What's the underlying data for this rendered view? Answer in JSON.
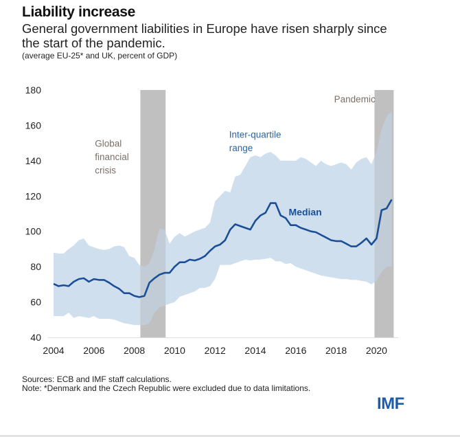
{
  "header": {
    "title": "Liability increase",
    "subtitle": "General government liabilities in Europe have risen sharply since the start of the pandemic.",
    "units": "(average EU-25* and UK, percent of GDP)"
  },
  "footer": {
    "sources": "Sources: ECB and IMF staff calculations.",
    "note": "Note: *Denmark and the Czech Republic were excluded due to data limitations.",
    "logo": "IMF"
  },
  "colors": {
    "median": "#1a4f98",
    "band": "#d0dfee",
    "shade": "#cfcfcf",
    "annotation": "#7a6e66",
    "annotation_blue": "#2a64a8",
    "axis": "#dddddd"
  },
  "chart_data": {
    "type": "area",
    "title": "Liability increase",
    "xlabel": "",
    "ylabel": "percent of GDP",
    "xlim": [
      2004,
      2020.75
    ],
    "ylim": [
      40,
      180
    ],
    "grid": false,
    "legend": "inline-annotations",
    "xticks": [
      "2004",
      "2006",
      "2008",
      "2010",
      "2012",
      "2014",
      "2016",
      "2018",
      "2020"
    ],
    "yticks": [
      "40",
      "60",
      "80",
      "100",
      "120",
      "140",
      "160",
      "180"
    ],
    "x": [
      2004.0,
      2004.25,
      2004.5,
      2004.75,
      2005.0,
      2005.25,
      2005.5,
      2005.75,
      2006.0,
      2006.25,
      2006.5,
      2006.75,
      2007.0,
      2007.25,
      2007.5,
      2007.75,
      2008.0,
      2008.25,
      2008.5,
      2008.75,
      2009.0,
      2009.25,
      2009.5,
      2009.75,
      2010.0,
      2010.25,
      2010.5,
      2010.75,
      2011.0,
      2011.25,
      2011.5,
      2011.75,
      2012.0,
      2012.25,
      2012.5,
      2012.75,
      2013.0,
      2013.25,
      2013.5,
      2013.75,
      2014.0,
      2014.25,
      2014.5,
      2014.75,
      2015.0,
      2015.25,
      2015.5,
      2015.75,
      2016.0,
      2016.25,
      2016.5,
      2016.75,
      2017.0,
      2017.25,
      2017.5,
      2017.75,
      2018.0,
      2018.25,
      2018.5,
      2018.75,
      2019.0,
      2019.25,
      2019.5,
      2019.75,
      2020.0,
      2020.25,
      2020.5,
      2020.75
    ],
    "series": [
      {
        "name": "Median",
        "values": [
          70.3,
          69,
          69.5,
          69,
          71.5,
          73,
          73.5,
          71.5,
          73,
          72.5,
          72.5,
          71,
          69,
          67.5,
          65,
          65,
          63.5,
          62.8,
          63.5,
          71,
          73.5,
          75.5,
          76.5,
          76.5,
          80,
          82.5,
          82.5,
          84,
          83.5,
          84.5,
          86,
          89,
          91.5,
          92.5,
          95,
          101,
          104,
          103,
          102,
          101,
          106,
          109,
          110.5,
          116,
          116,
          109,
          107.5,
          103.5,
          103.5,
          102,
          101,
          100,
          99.5,
          98,
          96.5,
          95,
          94.5,
          94.5,
          93,
          91.5,
          91.5,
          93.5,
          96,
          92.5,
          96,
          112,
          113,
          118
        ]
      },
      {
        "name": "Inter-quartile range (upper)",
        "values": [
          88,
          87.5,
          87.5,
          90,
          92,
          95,
          96,
          92,
          91,
          90,
          89.5,
          90,
          91.5,
          92,
          91,
          86,
          85,
          81,
          80,
          82,
          90,
          101.5,
          101,
          93,
          97,
          99,
          97,
          98.5,
          100,
          101,
          102,
          105,
          117,
          120,
          123,
          122,
          131,
          132,
          137,
          142,
          143,
          142,
          144,
          145,
          143,
          140,
          140,
          140,
          140,
          142,
          141,
          139,
          137,
          140,
          138,
          137,
          138,
          139,
          138,
          135,
          139,
          141,
          142,
          138,
          145,
          158,
          165,
          168
        ]
      },
      {
        "name": "Inter-quartile range (lower)",
        "values": [
          52,
          52,
          52,
          54,
          51,
          52,
          51.5,
          51,
          52,
          50.5,
          50.5,
          50.5,
          50,
          49,
          48,
          47.5,
          47,
          47,
          47,
          48,
          54,
          57,
          58,
          59,
          60,
          63,
          64,
          65,
          66,
          68,
          68,
          69,
          73,
          81,
          81,
          81,
          82,
          83,
          84,
          83.5,
          84,
          84,
          84.5,
          85,
          83,
          83,
          81.5,
          82,
          80,
          79,
          78,
          77,
          76,
          75,
          74.5,
          74,
          73.5,
          73,
          73,
          72.5,
          72.5,
          72,
          71.5,
          70,
          72,
          77,
          80,
          80
        ]
      }
    ],
    "shaded_periods": [
      {
        "label": "Global financial crisis",
        "start": 2008.3,
        "end": 2009.55
      },
      {
        "label": "Pandemic",
        "start": 2019.9,
        "end": 2020.85
      }
    ],
    "annotations": [
      {
        "text": [
          "Global",
          "financial",
          "crisis"
        ],
        "x": 2006.05,
        "y": 148
      },
      {
        "text": [
          "Inter-quartile",
          "range"
        ],
        "x": 2012.7,
        "y": 153
      },
      {
        "text": [
          "Median"
        ],
        "x": 2015.65,
        "y": 109
      },
      {
        "text": [
          "Pandemic"
        ],
        "x": 2017.9,
        "y": 173
      }
    ]
  }
}
